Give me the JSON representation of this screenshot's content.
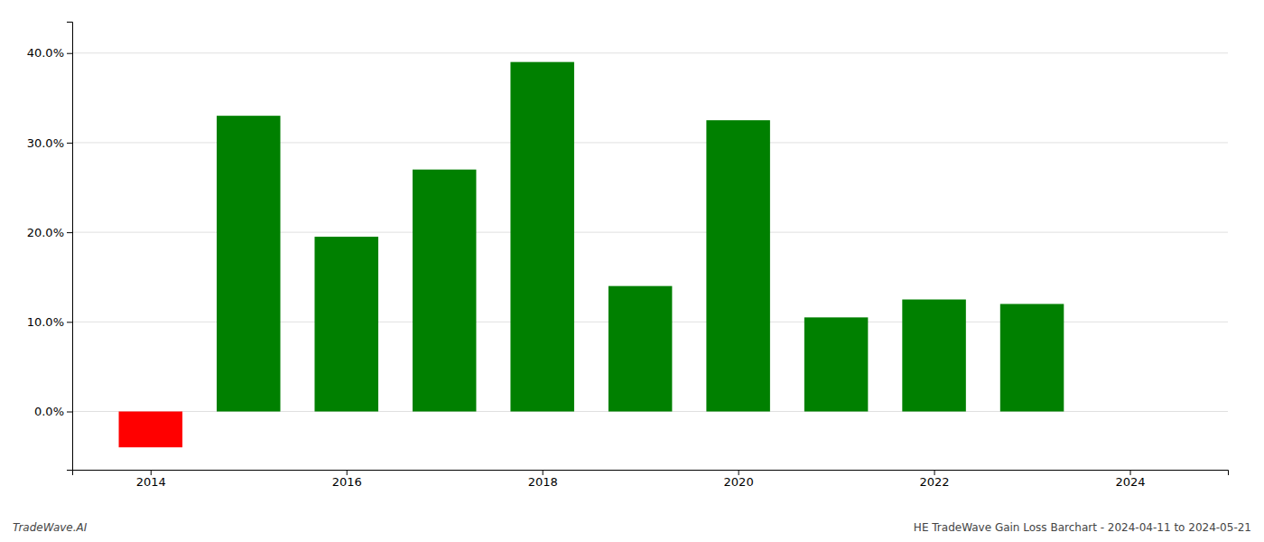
{
  "chart_data": {
    "type": "bar",
    "x": [
      2014,
      2015,
      2016,
      2017,
      2018,
      2019,
      2020,
      2021,
      2022,
      2023
    ],
    "values": [
      -0.04,
      0.33,
      0.195,
      0.27,
      0.39,
      0.14,
      0.325,
      0.105,
      0.125,
      0.12
    ],
    "colors": [
      "#ff0000",
      "#008000",
      "#008000",
      "#008000",
      "#008000",
      "#008000",
      "#008000",
      "#008000",
      "#008000",
      "#008000"
    ],
    "xlim": [
      2013.2,
      2025.0
    ],
    "xticks": [
      2014,
      2016,
      2018,
      2020,
      2022,
      2024
    ],
    "ylim": [
      -0.065,
      0.435
    ],
    "yticks": [
      {
        "value": 0.0,
        "label": "0.0%"
      },
      {
        "value": 0.1,
        "label": "10.0%"
      },
      {
        "value": 0.2,
        "label": "20.0%"
      },
      {
        "value": 0.3,
        "label": "30.0%"
      },
      {
        "value": 0.4,
        "label": "40.0%"
      }
    ],
    "grid": true,
    "annotations": [
      "TradeWave.AI",
      "HE TradeWave Gain Loss Barchart - 2024-04-11 to 2024-05-21"
    ]
  }
}
